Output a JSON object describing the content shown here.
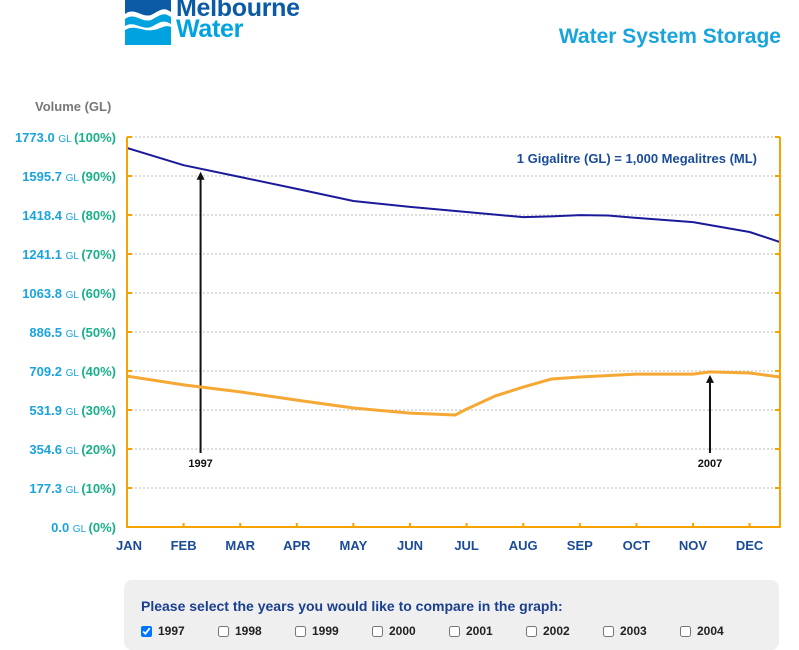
{
  "header": {
    "logo_text": [
      "Melbourne",
      "Water"
    ],
    "title": "Water System Storage"
  },
  "chart_data": {
    "type": "line",
    "title": "",
    "ylabel": "Volume (GL)",
    "annotation": "1 Gigalitre (GL) = 1,000 Megalitres (ML)",
    "ylim": [
      0,
      1773.0
    ],
    "y_ticks": [
      {
        "value": 1773.0,
        "label": "1773.0",
        "unit": "GL",
        "pct": "(100%)"
      },
      {
        "value": 1595.7,
        "label": "1595.7",
        "unit": "GL",
        "pct": "(90%)"
      },
      {
        "value": 1418.4,
        "label": "1418.4",
        "unit": "GL",
        "pct": "(80%)"
      },
      {
        "value": 1241.1,
        "label": "1241.1",
        "unit": "GL",
        "pct": "(70%)"
      },
      {
        "value": 1063.8,
        "label": "1063.8",
        "unit": "GL",
        "pct": "(60%)"
      },
      {
        "value": 886.5,
        "label": "886.5",
        "unit": "GL",
        "pct": "(50%)"
      },
      {
        "value": 709.2,
        "label": "709.2",
        "unit": "GL",
        "pct": "(40%)"
      },
      {
        "value": 531.9,
        "label": "531.9",
        "unit": "GL",
        "pct": "(30%)"
      },
      {
        "value": 354.6,
        "label": "354.6",
        "unit": "GL",
        "pct": "(20%)"
      },
      {
        "value": 177.3,
        "label": "177.3",
        "unit": "GL",
        "pct": "(10%)"
      },
      {
        "value": 0.0,
        "label": "0.0",
        "unit": "GL",
        "pct": "(0%)"
      }
    ],
    "categories": [
      "JAN",
      "FEB",
      "MAR",
      "APR",
      "MAY",
      "JUN",
      "JUL",
      "AUG",
      "SEP",
      "OCT",
      "NOV",
      "DEC"
    ],
    "grid": true,
    "series": [
      {
        "name": "1997",
        "color": "#1a1a9a",
        "label_at_month": 2.3,
        "x": [
          1,
          2,
          3,
          4,
          5,
          6,
          7,
          8,
          8.5,
          9,
          9.5,
          10,
          11,
          12,
          12.53
        ],
        "values": [
          1723,
          1645,
          1591,
          1537,
          1482,
          1455,
          1432,
          1409,
          1412,
          1418,
          1416,
          1405,
          1386,
          1341,
          1296
        ]
      },
      {
        "name": "2007",
        "color": "#f5a833",
        "label_at_month": 11.3,
        "x": [
          1,
          2,
          3,
          4,
          5,
          6,
          6.8,
          7,
          7.5,
          8,
          8.5,
          9,
          10,
          11,
          11.3,
          12,
          12.53
        ],
        "values": [
          686,
          646,
          614,
          577,
          541,
          518,
          509,
          536,
          595,
          636,
          673,
          682,
          695,
          695,
          705,
          700,
          682
        ]
      }
    ],
    "colors": {
      "axis": "#f5a300",
      "tick_value": "#19a4de",
      "tick_pct": "#17b08a",
      "month": "#1a4b9b",
      "grid": "#bbbbbb"
    }
  },
  "selector": {
    "title": "Please select the years you would like to compare in the graph:",
    "years": [
      {
        "label": "1997",
        "checked": true
      },
      {
        "label": "1998",
        "checked": false
      },
      {
        "label": "1999",
        "checked": false
      },
      {
        "label": "2000",
        "checked": false
      },
      {
        "label": "2001",
        "checked": false
      },
      {
        "label": "2002",
        "checked": false
      },
      {
        "label": "2003",
        "checked": false
      },
      {
        "label": "2004",
        "checked": false
      }
    ]
  }
}
